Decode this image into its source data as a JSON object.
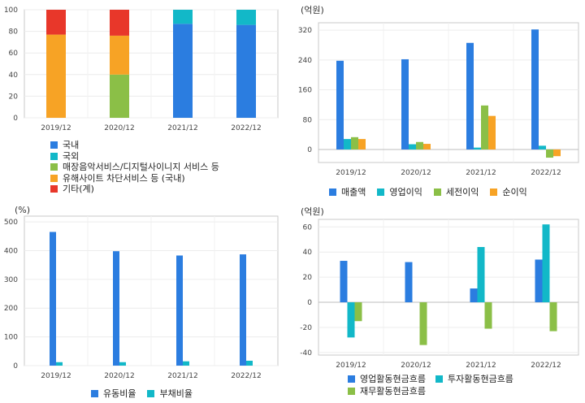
{
  "colors": {
    "domestic": "#2b7de0",
    "foreign": "#12b8c8",
    "green": "#8bbf47",
    "orange": "#f7a325",
    "red": "#e8372a"
  },
  "chart_data": [
    {
      "id": "revenue-mix",
      "type": "bar",
      "stacked": true,
      "unit": "",
      "categories": [
        "2019/12",
        "2020/12",
        "2021/12",
        "2022/12"
      ],
      "ylim": [
        0,
        100
      ],
      "yticks": [
        0,
        20,
        40,
        60,
        80,
        100
      ],
      "series": [
        {
          "name": "국내",
          "color": "#2b7de0",
          "values": [
            0,
            0,
            87,
            86
          ]
        },
        {
          "name": "국외",
          "color": "#12b8c8",
          "values": [
            0,
            0,
            13,
            14
          ]
        },
        {
          "name": "매장음악서비스/디지털사이니지 서비스 등",
          "color": "#8bbf47",
          "values": [
            0,
            40,
            0,
            0
          ]
        },
        {
          "name": "유해사이트 차단서비스 등 (국내)",
          "color": "#f7a325",
          "values": [
            77,
            36,
            0,
            0
          ]
        },
        {
          "name": "기타(계)",
          "color": "#e8372a",
          "values": [
            23,
            24,
            0,
            0
          ]
        }
      ],
      "grid": true,
      "legend": "bottom-left"
    },
    {
      "id": "income",
      "type": "bar",
      "unit": "(억원)",
      "categories": [
        "2019/12",
        "2020/12",
        "2021/12",
        "2022/12"
      ],
      "ylim": [
        -35,
        340
      ],
      "yticks": [
        0,
        80,
        160,
        240,
        320
      ],
      "series": [
        {
          "name": "매출액",
          "color": "#2b7de0",
          "values": [
            238,
            242,
            286,
            322
          ]
        },
        {
          "name": "영업이익",
          "color": "#12b8c8",
          "values": [
            28,
            14,
            5,
            10
          ]
        },
        {
          "name": "세전이익",
          "color": "#8bbf47",
          "values": [
            33,
            20,
            118,
            -22
          ]
        },
        {
          "name": "순이익",
          "color": "#f7a325",
          "values": [
            28,
            15,
            90,
            -18
          ]
        }
      ],
      "grid": true,
      "legend": "bottom"
    },
    {
      "id": "ratios",
      "type": "bar",
      "unit": "(%)",
      "categories": [
        "2019/12",
        "2020/12",
        "2021/12",
        "2022/12"
      ],
      "ylim": [
        0,
        520
      ],
      "yticks": [
        0,
        100,
        200,
        300,
        400,
        500
      ],
      "series": [
        {
          "name": "유동비율",
          "color": "#2b7de0",
          "values": [
            465,
            398,
            383,
            387
          ]
        },
        {
          "name": "부채비율",
          "color": "#12b8c8",
          "values": [
            12,
            12,
            15,
            17
          ]
        }
      ],
      "grid": true,
      "legend": "bottom"
    },
    {
      "id": "cashflow",
      "type": "bar",
      "unit": "(억원)",
      "categories": [
        "2019/12",
        "2020/12",
        "2021/12",
        "2022/12"
      ],
      "ylim": [
        -42,
        66
      ],
      "yticks": [
        -40,
        -20,
        0,
        20,
        40,
        60
      ],
      "series": [
        {
          "name": "영업활동현금흐름",
          "color": "#2b7de0",
          "values": [
            33,
            32,
            11,
            34
          ]
        },
        {
          "name": "투자활동현금흐름",
          "color": "#12b8c8",
          "values": [
            -28,
            0,
            44,
            62
          ]
        },
        {
          "name": "재무활동현금흐름",
          "color": "#8bbf47",
          "values": [
            -15,
            -34,
            -21,
            -23
          ]
        }
      ],
      "grid": true,
      "legend": "bottom"
    }
  ]
}
